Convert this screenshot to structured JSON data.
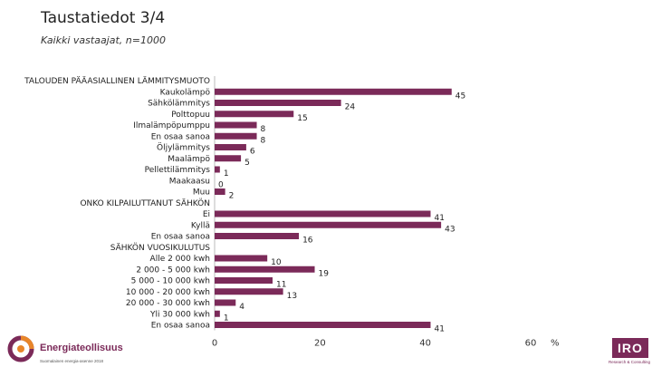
{
  "header": {
    "title": "Taustatiedot 3/4",
    "subtitle": "Kaikki vastaajat, n=1000"
  },
  "chart_data": {
    "type": "bar",
    "orientation": "horizontal",
    "unit": "%",
    "xlim": [
      0,
      60
    ],
    "xticks": [
      0,
      20,
      40,
      60
    ],
    "color": "#7b2a59",
    "rows": [
      {
        "label": "TALOUDEN PÄÄASIALLINEN LÄMMITYSMUOTO",
        "heading": true
      },
      {
        "label": "Kaukolämpö",
        "value": 45
      },
      {
        "label": "Sähkölämmitys",
        "value": 24
      },
      {
        "label": "Polttopuu",
        "value": 15
      },
      {
        "label": "Ilmalämpöpumppu",
        "value": 8
      },
      {
        "label": "En osaa sanoa",
        "value": 8
      },
      {
        "label": "Öljylämmitys",
        "value": 6
      },
      {
        "label": "Maalämpö",
        "value": 5
      },
      {
        "label": "Pellettilämmitys",
        "value": 1
      },
      {
        "label": "Maakaasu",
        "value": 0
      },
      {
        "label": "Muu",
        "value": 2
      },
      {
        "label": "ONKO KILPAILUTTANUT SÄHKÖN",
        "heading": true
      },
      {
        "label": "Ei",
        "value": 41
      },
      {
        "label": "Kyllä",
        "value": 43
      },
      {
        "label": "En osaa sanoa",
        "value": 16
      },
      {
        "label": "SÄHKÖN VUOSIKULUTUS",
        "heading": true
      },
      {
        "label": "Alle 2 000 kwh",
        "value": 10
      },
      {
        "label": "2 000 - 5 000 kwh",
        "value": 19
      },
      {
        "label": "5 000 - 10 000 kwh",
        "value": 11
      },
      {
        "label": "10 000 - 20 000 kwh",
        "value": 13
      },
      {
        "label": "20 000 - 30 000 kwh",
        "value": 4
      },
      {
        "label": "Yli 30 000 kwh",
        "value": 1
      },
      {
        "label": "En osaa sanoa",
        "value": 41
      }
    ]
  },
  "footer": {
    "brand_name": "Energiateollisuus",
    "brand_tagline": "Suomalainen energia-asenne 2018",
    "agency_name": "IRO",
    "agency_tagline": "Research & Consulting"
  },
  "colors": {
    "bar": "#7b2a59",
    "brand": "#7b2a59"
  }
}
